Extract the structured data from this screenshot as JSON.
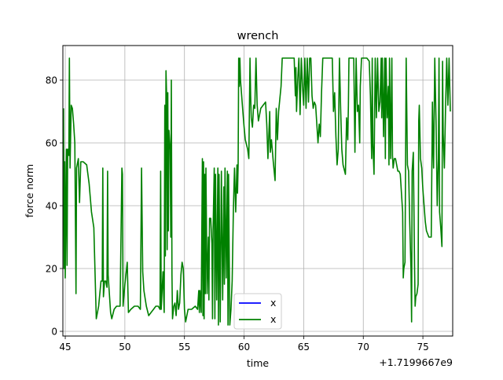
{
  "chart_data": {
    "type": "line",
    "title": "wrench",
    "xlabel": "time",
    "ylabel": "force norm",
    "x_offset_label": "+1.7199667e9",
    "xlim": [
      44.8,
      77.5
    ],
    "ylim": [
      -1.5,
      91
    ],
    "xticks": [
      45,
      50,
      55,
      60,
      65,
      70,
      75
    ],
    "yticks": [
      0,
      20,
      40,
      60,
      80
    ],
    "grid": true,
    "legend_position": "lower center",
    "series": [
      {
        "name": "x",
        "color": "#0000ff",
        "values": []
      },
      {
        "name": "x",
        "color": "#008000",
        "values": [
          [
            44.85,
            71
          ],
          [
            44.9,
            20
          ],
          [
            44.95,
            54
          ],
          [
            45.0,
            17
          ],
          [
            45.05,
            40
          ],
          [
            45.1,
            58
          ],
          [
            45.15,
            21
          ],
          [
            45.2,
            58
          ],
          [
            45.3,
            56
          ],
          [
            45.35,
            87
          ],
          [
            45.4,
            52
          ],
          [
            45.5,
            72
          ],
          [
            45.6,
            71
          ],
          [
            45.7,
            66
          ],
          [
            45.8,
            60
          ],
          [
            45.9,
            12
          ],
          [
            45.95,
            52
          ],
          [
            46.1,
            55
          ],
          [
            46.2,
            41
          ],
          [
            46.3,
            54
          ],
          [
            46.5,
            54
          ],
          [
            46.8,
            53
          ],
          [
            47.0,
            47
          ],
          [
            47.2,
            38
          ],
          [
            47.4,
            33
          ],
          [
            47.6,
            4
          ],
          [
            47.8,
            8
          ],
          [
            48.0,
            16
          ],
          [
            48.1,
            16
          ],
          [
            48.15,
            52
          ],
          [
            48.2,
            11
          ],
          [
            48.3,
            16
          ],
          [
            48.4,
            16
          ],
          [
            48.5,
            14
          ],
          [
            48.55,
            51
          ],
          [
            48.6,
            18
          ],
          [
            48.8,
            6
          ],
          [
            48.9,
            4
          ],
          [
            49.1,
            7
          ],
          [
            49.3,
            8
          ],
          [
            49.6,
            8
          ],
          [
            49.75,
            52
          ],
          [
            49.8,
            50
          ],
          [
            49.85,
            8
          ],
          [
            50.0,
            15
          ],
          [
            50.2,
            22
          ],
          [
            50.3,
            6
          ],
          [
            50.5,
            7
          ],
          [
            50.8,
            8
          ],
          [
            51.1,
            8
          ],
          [
            51.3,
            7
          ],
          [
            51.4,
            52
          ],
          [
            51.5,
            19
          ],
          [
            51.6,
            13
          ],
          [
            51.8,
            8
          ],
          [
            52.0,
            5
          ],
          [
            52.2,
            6
          ],
          [
            52.4,
            7
          ],
          [
            52.6,
            8
          ],
          [
            52.8,
            8
          ],
          [
            52.95,
            7
          ],
          [
            53.0,
            51
          ],
          [
            53.05,
            7
          ],
          [
            53.2,
            19
          ],
          [
            53.3,
            6
          ],
          [
            53.35,
            72
          ],
          [
            53.4,
            24
          ],
          [
            53.45,
            83
          ],
          [
            53.5,
            75
          ],
          [
            53.55,
            26
          ],
          [
            53.6,
            76
          ],
          [
            53.65,
            32
          ],
          [
            53.7,
            64
          ],
          [
            53.8,
            58
          ],
          [
            53.85,
            30
          ],
          [
            53.9,
            80
          ],
          [
            53.95,
            18
          ],
          [
            54.0,
            4
          ],
          [
            54.1,
            8
          ],
          [
            54.2,
            9
          ],
          [
            54.3,
            5
          ],
          [
            54.4,
            13
          ],
          [
            54.5,
            7
          ],
          [
            54.6,
            9
          ],
          [
            54.7,
            18
          ],
          [
            54.8,
            22
          ],
          [
            54.9,
            20
          ],
          [
            55.0,
            7
          ],
          [
            55.1,
            3
          ],
          [
            55.3,
            7
          ],
          [
            55.6,
            7
          ],
          [
            55.9,
            8
          ],
          [
            56.1,
            7
          ],
          [
            56.2,
            13
          ],
          [
            56.25,
            6
          ],
          [
            56.3,
            13
          ],
          [
            56.4,
            6
          ],
          [
            56.5,
            55
          ],
          [
            56.55,
            5
          ],
          [
            56.6,
            54
          ],
          [
            56.65,
            4
          ],
          [
            56.7,
            50
          ],
          [
            56.75,
            12
          ],
          [
            56.8,
            52
          ],
          [
            56.9,
            12
          ],
          [
            57.0,
            30
          ],
          [
            57.05,
            10
          ],
          [
            57.1,
            36
          ],
          [
            57.2,
            36
          ],
          [
            57.3,
            28
          ],
          [
            57.35,
            4
          ],
          [
            57.4,
            32
          ],
          [
            57.5,
            52
          ],
          [
            57.55,
            4
          ],
          [
            57.6,
            50
          ],
          [
            57.7,
            10
          ],
          [
            57.8,
            52
          ],
          [
            57.85,
            2
          ],
          [
            57.9,
            50
          ],
          [
            58.0,
            3
          ],
          [
            58.1,
            51
          ],
          [
            58.2,
            10
          ],
          [
            58.3,
            46
          ],
          [
            58.35,
            15
          ],
          [
            58.4,
            52
          ],
          [
            58.5,
            17
          ],
          [
            58.6,
            51
          ],
          [
            58.65,
            2
          ],
          [
            58.7,
            50
          ],
          [
            58.8,
            2
          ],
          [
            58.9,
            7
          ],
          [
            59.0,
            16
          ],
          [
            59.1,
            38
          ],
          [
            59.15,
            46
          ],
          [
            59.2,
            52
          ],
          [
            59.3,
            38
          ],
          [
            59.4,
            53
          ],
          [
            59.45,
            44
          ],
          [
            59.5,
            53
          ],
          [
            59.55,
            87
          ],
          [
            59.6,
            78
          ],
          [
            59.65,
            87
          ],
          [
            59.7,
            80
          ],
          [
            59.8,
            75
          ],
          [
            59.9,
            70
          ],
          [
            60.0,
            65
          ],
          [
            60.1,
            61
          ],
          [
            60.3,
            58
          ],
          [
            60.4,
            55
          ],
          [
            60.5,
            87
          ],
          [
            60.55,
            75
          ],
          [
            60.6,
            68
          ],
          [
            60.7,
            65
          ],
          [
            60.8,
            72
          ],
          [
            60.9,
            71
          ],
          [
            61.0,
            87
          ],
          [
            61.1,
            72
          ],
          [
            61.2,
            67
          ],
          [
            61.3,
            69
          ],
          [
            61.4,
            71
          ],
          [
            61.6,
            72
          ],
          [
            61.8,
            73
          ],
          [
            61.9,
            66
          ],
          [
            62.0,
            55
          ],
          [
            62.15,
            70
          ],
          [
            62.2,
            57
          ],
          [
            62.3,
            61
          ],
          [
            62.45,
            54
          ],
          [
            62.6,
            48
          ],
          [
            62.7,
            71
          ],
          [
            62.8,
            61
          ],
          [
            62.9,
            70
          ],
          [
            63.1,
            78
          ],
          [
            63.2,
            87
          ],
          [
            63.4,
            87
          ],
          [
            63.6,
            87
          ],
          [
            63.8,
            87
          ],
          [
            64.0,
            87
          ],
          [
            64.2,
            87
          ],
          [
            64.3,
            75
          ],
          [
            64.35,
            84
          ],
          [
            64.4,
            70
          ],
          [
            64.5,
            80
          ],
          [
            64.6,
            87
          ],
          [
            64.7,
            69
          ],
          [
            64.8,
            87
          ],
          [
            64.9,
            78
          ],
          [
            65.0,
            72
          ],
          [
            65.1,
            87
          ],
          [
            65.2,
            71
          ],
          [
            65.3,
            87
          ],
          [
            65.4,
            73
          ],
          [
            65.5,
            87
          ],
          [
            65.6,
            87
          ],
          [
            65.7,
            75
          ],
          [
            65.8,
            71
          ],
          [
            65.9,
            73
          ],
          [
            66.0,
            72
          ],
          [
            66.1,
            66
          ],
          [
            66.2,
            60
          ],
          [
            66.3,
            66
          ],
          [
            66.4,
            62
          ],
          [
            66.5,
            76
          ],
          [
            66.6,
            87
          ],
          [
            66.8,
            87
          ],
          [
            67.0,
            87
          ],
          [
            67.2,
            87
          ],
          [
            67.4,
            87
          ],
          [
            67.5,
            70
          ],
          [
            67.6,
            76
          ],
          [
            67.7,
            62
          ],
          [
            67.8,
            53
          ],
          [
            67.9,
            58
          ],
          [
            68.0,
            87
          ],
          [
            68.1,
            71
          ],
          [
            68.2,
            58
          ],
          [
            68.3,
            53
          ],
          [
            68.5,
            50
          ],
          [
            68.6,
            68
          ],
          [
            68.7,
            61
          ],
          [
            68.75,
            72
          ],
          [
            68.8,
            87
          ],
          [
            69.0,
            87
          ],
          [
            69.2,
            87
          ],
          [
            69.3,
            57
          ],
          [
            69.4,
            87
          ],
          [
            69.5,
            70
          ],
          [
            69.6,
            72
          ],
          [
            69.7,
            60
          ],
          [
            69.75,
            78
          ],
          [
            69.85,
            87
          ],
          [
            70.0,
            87
          ],
          [
            70.3,
            87
          ],
          [
            70.5,
            86
          ],
          [
            70.6,
            75
          ],
          [
            70.7,
            55
          ],
          [
            70.75,
            87
          ],
          [
            70.8,
            60
          ],
          [
            70.9,
            50
          ],
          [
            71.0,
            87
          ],
          [
            71.1,
            68
          ],
          [
            71.2,
            87
          ],
          [
            71.3,
            70
          ],
          [
            71.4,
            73
          ],
          [
            71.5,
            87
          ],
          [
            71.55,
            68
          ],
          [
            71.6,
            87
          ],
          [
            71.7,
            62
          ],
          [
            71.8,
            87
          ],
          [
            71.85,
            55
          ],
          [
            71.9,
            87
          ],
          [
            72.0,
            68
          ],
          [
            72.1,
            78
          ],
          [
            72.15,
            53
          ],
          [
            72.2,
            87
          ],
          [
            72.3,
            55
          ],
          [
            72.4,
            87
          ],
          [
            72.45,
            56
          ],
          [
            72.5,
            52
          ],
          [
            72.6,
            55
          ],
          [
            72.7,
            55
          ],
          [
            72.8,
            53
          ],
          [
            72.9,
            51
          ],
          [
            73.0,
            51
          ],
          [
            73.1,
            50
          ],
          [
            73.2,
            44
          ],
          [
            73.3,
            38
          ],
          [
            73.35,
            17
          ],
          [
            73.4,
            20
          ],
          [
            73.5,
            22
          ],
          [
            73.6,
            87
          ],
          [
            73.7,
            53
          ],
          [
            73.8,
            51
          ],
          [
            73.9,
            34
          ],
          [
            74.0,
            20
          ],
          [
            74.05,
            3
          ],
          [
            74.1,
            51
          ],
          [
            74.2,
            57
          ],
          [
            74.3,
            20
          ],
          [
            74.35,
            8
          ],
          [
            74.4,
            11
          ],
          [
            74.5,
            12
          ],
          [
            74.6,
            15
          ],
          [
            74.65,
            67
          ],
          [
            74.7,
            72
          ],
          [
            74.8,
            55
          ],
          [
            74.9,
            52
          ],
          [
            75.0,
            45
          ],
          [
            75.1,
            40
          ],
          [
            75.2,
            35
          ],
          [
            75.3,
            32
          ],
          [
            75.5,
            30
          ],
          [
            75.7,
            30
          ],
          [
            75.8,
            73
          ],
          [
            75.85,
            59
          ],
          [
            75.9,
            52
          ],
          [
            76.0,
            87
          ],
          [
            76.1,
            67
          ],
          [
            76.2,
            40
          ],
          [
            76.3,
            55
          ],
          [
            76.35,
            87
          ],
          [
            76.4,
            38
          ],
          [
            76.5,
            33
          ],
          [
            76.6,
            27
          ],
          [
            76.65,
            86
          ],
          [
            76.7,
            63
          ],
          [
            76.8,
            52
          ],
          [
            76.9,
            71
          ],
          [
            77.0,
            87
          ],
          [
            77.1,
            72
          ],
          [
            77.2,
            87
          ],
          [
            77.3,
            70
          ]
        ]
      }
    ]
  }
}
